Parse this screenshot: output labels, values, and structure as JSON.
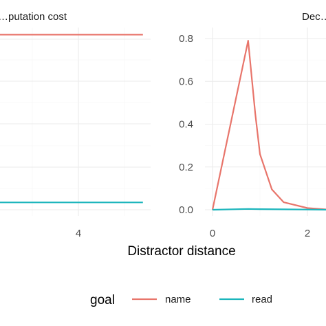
{
  "chart_data": [
    {
      "type": "line",
      "title": "…putation cost",
      "x_tick_labels": [
        "4"
      ],
      "y_tick_labels": [],
      "x_ticks": [
        4
      ],
      "series": [
        {
          "name": "name",
          "color": "#E8756B",
          "x": [
            1.2,
            5.4
          ],
          "y": [
            0.95,
            0.95
          ]
        },
        {
          "name": "read",
          "color": "#1BB5BC",
          "x": [
            1.2,
            5.4
          ],
          "y": [
            0.04,
            0.04
          ]
        }
      ]
    },
    {
      "type": "line",
      "title": "Dec…",
      "x_tick_labels": [
        "0",
        "2"
      ],
      "x_ticks": [
        0,
        2
      ],
      "y_tick_labels": [
        "0.0",
        "0.2",
        "0.4",
        "0.6",
        "0.8"
      ],
      "y_ticks": [
        0.0,
        0.2,
        0.4,
        0.6,
        0.8
      ],
      "series": [
        {
          "name": "name",
          "color": "#E8756B",
          "x": [
            0,
            0.75,
            0.9,
            1.0,
            1.25,
            1.5,
            2.0,
            2.5
          ],
          "y": [
            0.0,
            0.79,
            0.45,
            0.26,
            0.095,
            0.035,
            0.008,
            0.0
          ]
        },
        {
          "name": "read",
          "color": "#1BB5BC",
          "x": [
            0,
            0.75,
            1.0,
            1.5,
            2.0,
            2.5
          ],
          "y": [
            0.0,
            0.004,
            0.003,
            0.002,
            0.001,
            0.0
          ]
        }
      ]
    }
  ],
  "xlabel": "Distractor distance",
  "legend": {
    "title": "goal",
    "placement": "bottom",
    "items": [
      {
        "label": "name",
        "color": "#E8756B"
      },
      {
        "label": "read",
        "color": "#1BB5BC"
      }
    ]
  }
}
